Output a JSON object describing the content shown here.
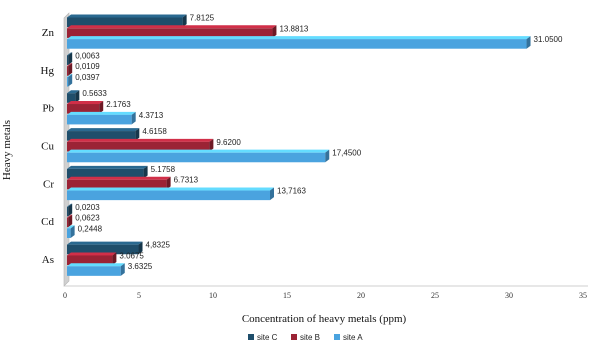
{
  "chart_data": {
    "type": "bar",
    "orientation": "horizontal",
    "categories": [
      "As",
      "Cd",
      "Cr",
      "Cu",
      "Pb",
      "Hg",
      "Zn"
    ],
    "series": [
      {
        "name": "site C",
        "color": "#1f4e6b",
        "values": [
          4.8325,
          0.0203,
          5.1758,
          4.6158,
          0.5633,
          0.0063,
          7.8125
        ],
        "labels": [
          "4,8325",
          "0,0203",
          "5.1758",
          "4.6158",
          "0.5633",
          "0,0063",
          "7.8125"
        ]
      },
      {
        "name": "site B",
        "color": "#9b2335",
        "values": [
          3.0675,
          0.0623,
          6.7313,
          9.62,
          2.1763,
          0.0109,
          13.8813
        ],
        "labels": [
          "3.0675",
          "0,0623",
          "6.7313",
          "9.6200",
          "2.1763",
          "0,0109",
          "13.8813"
        ]
      },
      {
        "name": "site A",
        "color": "#4aa3df",
        "values": [
          3.6325,
          0.2448,
          13.7163,
          17.45,
          4.3713,
          0.0397,
          31.05
        ],
        "labels": [
          "3.6325",
          "0,2448",
          "13,7163",
          "17,4500",
          "4.3713",
          "0,0397",
          "31.0500"
        ]
      }
    ],
    "xlabel": "Concentration  of heavy metals (ppm)",
    "ylabel": "Heavy metals",
    "xlim": [
      0,
      35
    ],
    "xticks": [
      "0",
      "5",
      "10",
      "15",
      "20",
      "25",
      "30",
      "35"
    ],
    "legend_position": "bottom"
  }
}
